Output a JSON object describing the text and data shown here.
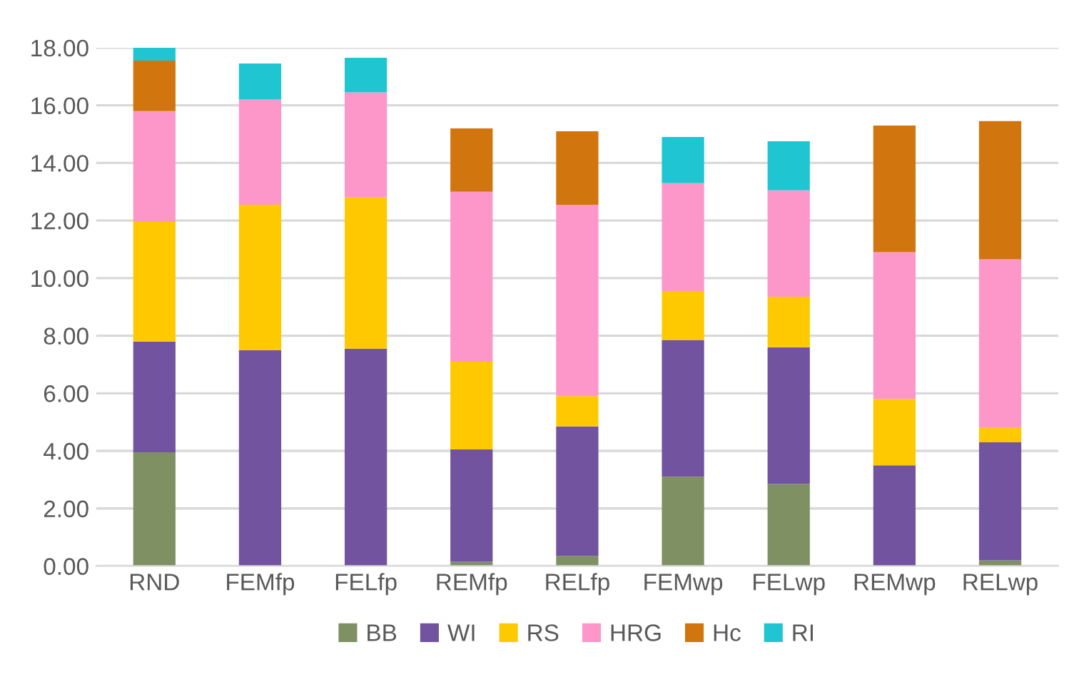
{
  "chart_data": {
    "type": "bar",
    "stacked": true,
    "categories": [
      "RND",
      "FEMfp",
      "FELfp",
      "REMfp",
      "RELfp",
      "FEMwp",
      "FELwp",
      "REMwp",
      "RELwp"
    ],
    "series": [
      {
        "name": "BB",
        "color": "#7f9162",
        "values": [
          3.95,
          0,
          0,
          0.15,
          0.35,
          3.1,
          2.85,
          0,
          0.2
        ]
      },
      {
        "name": "WI",
        "color": "#7153a0",
        "values": [
          3.85,
          7.5,
          7.55,
          3.9,
          4.5,
          4.75,
          4.75,
          3.5,
          4.1
        ]
      },
      {
        "name": "RS",
        "color": "#ffc900",
        "values": [
          4.15,
          5.05,
          5.25,
          3.05,
          1.05,
          1.7,
          1.75,
          2.3,
          0.5
        ]
      },
      {
        "name": "HRG",
        "color": "#fd97c9",
        "values": [
          3.85,
          3.65,
          3.65,
          5.9,
          6.65,
          3.75,
          3.7,
          5.1,
          5.85
        ]
      },
      {
        "name": "Hc",
        "color": "#d1750f",
        "values": [
          1.75,
          0,
          0,
          2.2,
          2.55,
          0,
          0,
          4.4,
          4.8
        ]
      },
      {
        "name": "RI",
        "color": "#20c5d2",
        "values": [
          0.45,
          1.25,
          1.2,
          0,
          0,
          1.6,
          1.7,
          0,
          0
        ]
      }
    ],
    "ylim": [
      0,
      18
    ],
    "yticks": [
      {
        "value": 0,
        "label": "0.00"
      },
      {
        "value": 2,
        "label": "2.00"
      },
      {
        "value": 4,
        "label": "4.00"
      },
      {
        "value": 6,
        "label": "6.00"
      },
      {
        "value": 8,
        "label": "8.00"
      },
      {
        "value": 10,
        "label": "10.00"
      },
      {
        "value": 12,
        "label": "12.00"
      },
      {
        "value": 14,
        "label": "14.00"
      },
      {
        "value": 16,
        "label": "16.00"
      },
      {
        "value": 18,
        "label": "18.00"
      }
    ],
    "grid": "y",
    "legend": "bottom"
  }
}
